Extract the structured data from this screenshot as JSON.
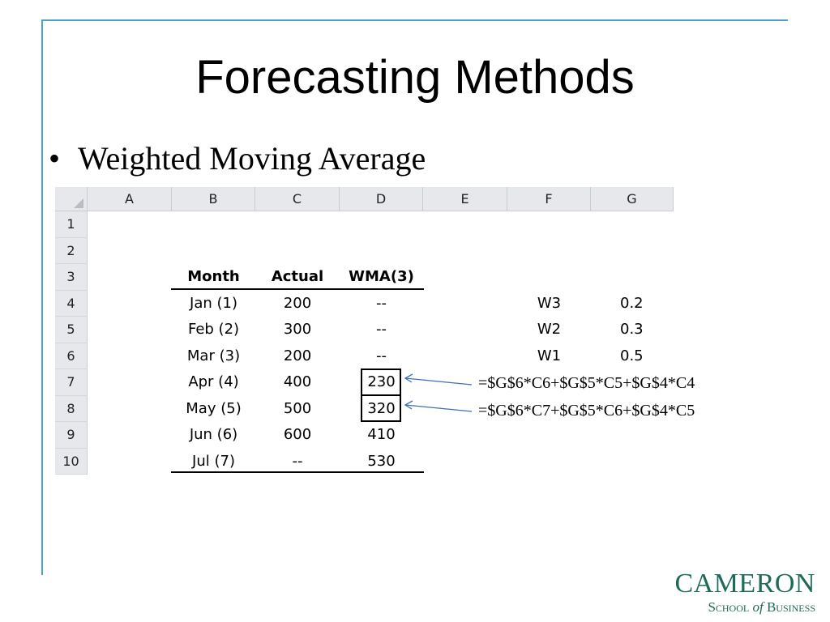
{
  "slide": {
    "title": "Forecasting Methods",
    "bullet": "Weighted Moving Average"
  },
  "sheet": {
    "columns": [
      "A",
      "B",
      "C",
      "D",
      "E",
      "F",
      "G"
    ],
    "rows": [
      "1",
      "2",
      "3",
      "4",
      "5",
      "6",
      "7",
      "8",
      "9",
      "10"
    ],
    "table_headers": [
      "Month",
      "Actual",
      "WMA(3)"
    ],
    "table_rows": [
      [
        "Jan (1)",
        "200",
        "--"
      ],
      [
        "Feb (2)",
        "300",
        "--"
      ],
      [
        "Mar (3)",
        "200",
        "--"
      ],
      [
        "Apr (4)",
        "400",
        "230"
      ],
      [
        "May (5)",
        "500",
        "320"
      ],
      [
        "Jun (6)",
        "600",
        "410"
      ],
      [
        "Jul (7)",
        "--",
        "530"
      ]
    ],
    "weights": [
      [
        "W3",
        "0.2"
      ],
      [
        "W2",
        "0.3"
      ],
      [
        "W1",
        "0.5"
      ]
    ]
  },
  "formulas": [
    "=$G$6*C6+$G$5*C5+$G$4*C4",
    "=$G$6*C7+$G$5*C6+$G$4*C5"
  ],
  "logo": {
    "line1": "CAMERON",
    "line2_a": "School",
    "line2_b": "of",
    "line2_c": "Business",
    "color": "#1e6b5a"
  },
  "colors": {
    "frame": "#4aa3c7",
    "header_fill": "#e6e8ec",
    "arrow": "#3b6fb6"
  }
}
